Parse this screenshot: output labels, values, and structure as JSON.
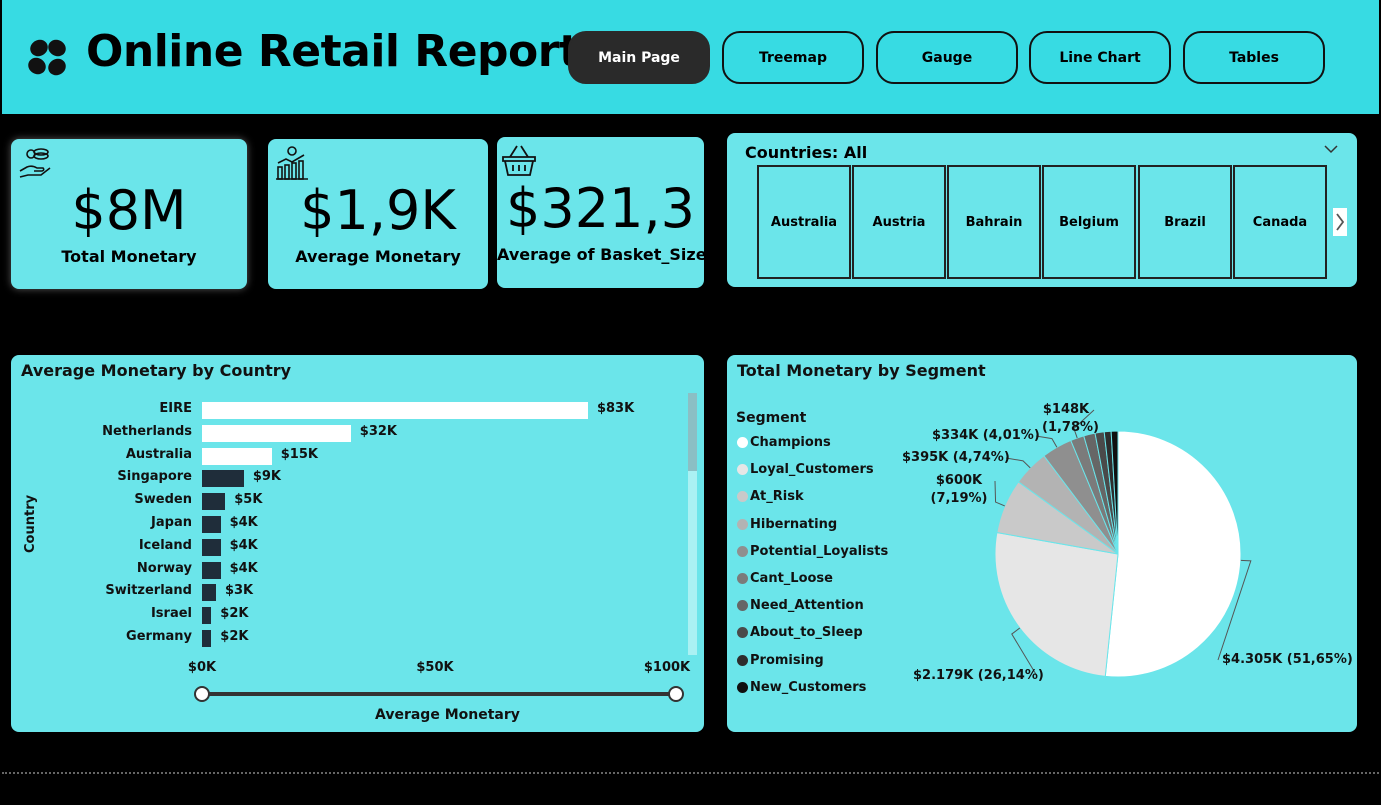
{
  "header": {
    "title": "Online Retail Report",
    "nav": [
      "Main Page",
      "Treemap",
      "Gauge",
      "Line Chart",
      "Tables"
    ],
    "active_nav": "Main Page"
  },
  "kpis": [
    {
      "value": "$8M",
      "label": "Total Monetary",
      "icon": "money-hand-icon"
    },
    {
      "value": "$1,9K",
      "label": "Average Monetary",
      "icon": "bar-chart-dollar-icon"
    },
    {
      "value": "$321,3",
      "label": "Average of Basket_Size",
      "icon": "basket-icon"
    }
  ],
  "slicer": {
    "title": "Countries: All",
    "tiles": [
      "Australia",
      "Austria",
      "Bahrain",
      "Belgium",
      "Brazil",
      "Canada"
    ]
  },
  "bar_card": {
    "title": "Average Monetary by Country",
    "y_axis_title": "Country",
    "x_axis_title": "Average Monetary",
    "ticks": [
      "$0K",
      "$50K",
      "$100K"
    ]
  },
  "pie_card": {
    "title": "Total Monetary by Segment",
    "legend_title": "Segment"
  },
  "colors": {
    "header_bg": "#37dbe3",
    "card_bg": "#6be5ea",
    "bar_highlight": "#ffffff",
    "bar_dark": "#1f2d3a"
  },
  "chart_data": [
    {
      "type": "bar",
      "orientation": "horizontal",
      "title": "Average Monetary by Country",
      "xlabel": "Average Monetary",
      "ylabel": "Country",
      "xlim": [
        0,
        100
      ],
      "unit": "$K",
      "categories": [
        "EIRE",
        "Netherlands",
        "Australia",
        "Singapore",
        "Sweden",
        "Japan",
        "Iceland",
        "Norway",
        "Switzerland",
        "Israel",
        "Germany"
      ],
      "values": [
        83,
        32,
        15,
        9,
        5,
        4,
        4,
        4,
        3,
        2,
        2
      ],
      "labels": [
        "$83K",
        "$32K",
        "$15K",
        "$9K",
        "$5K",
        "$4K",
        "$4K",
        "$4K",
        "$3K",
        "$2K",
        "$2K"
      ],
      "highlighted": [
        true,
        true,
        true,
        false,
        false,
        false,
        false,
        false,
        false,
        false,
        false
      ]
    },
    {
      "type": "pie",
      "title": "Total Monetary by Segment",
      "legend_title": "Segment",
      "legend_position": "left",
      "categories": [
        "Champions",
        "Loyal_Customers",
        "At_Risk",
        "Hibernating",
        "Potential_Loyalists",
        "Cant_Loose",
        "Need_Attention",
        "About_to_Sleep",
        "Promising",
        "New_Customers"
      ],
      "values": [
        51.65,
        26.14,
        7.19,
        4.74,
        4.01,
        1.78,
        1.5,
        1.2,
        0.9,
        0.89
      ],
      "colors": [
        "#ffffff",
        "#e6e6e6",
        "#c9c9c9",
        "#b3b3b3",
        "#8f8f8f",
        "#7b7b7b",
        "#666666",
        "#4a4a4a",
        "#2d2d2d",
        "#101010"
      ],
      "slice_labels": [
        {
          "index": 0,
          "text": "$4.305K (51,65%)"
        },
        {
          "index": 1,
          "text": "$2.179K (26,14%)"
        },
        {
          "index": 2,
          "text": "$600K (7,19%)"
        },
        {
          "index": 3,
          "text": "$395K (4,74%)"
        },
        {
          "index": 4,
          "text": "$334K (4,01%)"
        },
        {
          "index": 5,
          "text": "$148K (1,78%)"
        }
      ]
    }
  ]
}
